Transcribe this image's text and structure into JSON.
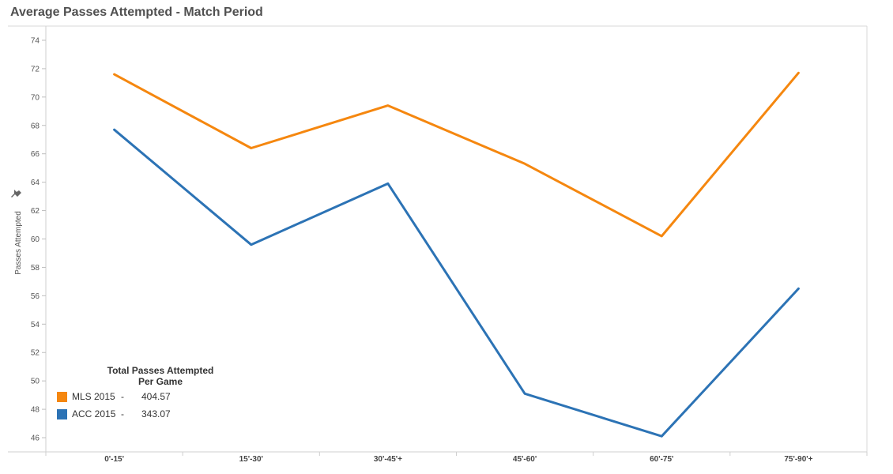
{
  "title": "Average Passes Attempted - Match Period",
  "pin_icon": "pin-icon",
  "chart_data": {
    "type": "line",
    "title": "Average Passes Attempted - Match Period",
    "xlabel": "",
    "ylabel": "Passes Attempted",
    "categories": [
      "0'-15'",
      "15'-30'",
      "30'-45'+",
      "45'-60'",
      "60'-75'",
      "75'-90'+"
    ],
    "ylim": [
      45,
      75
    ],
    "yticks": [
      46,
      48,
      50,
      52,
      54,
      56,
      58,
      60,
      62,
      64,
      66,
      68,
      70,
      72,
      74
    ],
    "grid": false,
    "legend_position": "bottom-left",
    "series": [
      {
        "name": "MLS 2015",
        "color": "#F5870F",
        "values": [
          71.6,
          66.4,
          69.4,
          65.3,
          60.2,
          71.7
        ]
      },
      {
        "name": "ACC 2015",
        "color": "#2C73B5",
        "values": [
          67.7,
          59.6,
          63.9,
          49.1,
          46.1,
          56.5
        ]
      }
    ]
  },
  "legend": {
    "title_line1": "Total Passes Attempted",
    "title_line2": "Per Game",
    "items": [
      {
        "name": "MLS 2015",
        "sep": "-",
        "value": "404.57",
        "color": "#F5870F"
      },
      {
        "name": "ACC 2015",
        "sep": "-",
        "value": "343.07",
        "color": "#2C73B5"
      }
    ]
  }
}
